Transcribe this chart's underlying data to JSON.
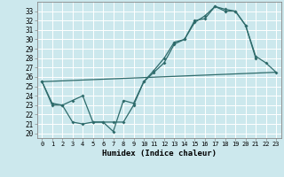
{
  "xlabel": "Humidex (Indice chaleur)",
  "bg_color": "#cce8ed",
  "grid_color": "#ffffff",
  "line_color": "#2e6b6b",
  "xlim": [
    -0.5,
    23.5
  ],
  "ylim": [
    19.5,
    34.0
  ],
  "xticks": [
    0,
    1,
    2,
    3,
    4,
    5,
    6,
    7,
    8,
    9,
    10,
    11,
    12,
    13,
    14,
    15,
    16,
    17,
    18,
    19,
    20,
    21,
    22,
    23
  ],
  "yticks": [
    20,
    21,
    22,
    23,
    24,
    25,
    26,
    27,
    28,
    29,
    30,
    31,
    32,
    33
  ],
  "line1_x": [
    0,
    1,
    2,
    3,
    4,
    5,
    6,
    7,
    8,
    9,
    10,
    11,
    12,
    13,
    14,
    15,
    16,
    17,
    18,
    19,
    20,
    21
  ],
  "line1_y": [
    25.5,
    23.0,
    23.0,
    23.5,
    24.0,
    21.2,
    21.2,
    20.2,
    23.5,
    23.2,
    25.5,
    26.5,
    27.5,
    29.5,
    30.0,
    32.0,
    32.2,
    33.5,
    33.0,
    33.0,
    31.5,
    28.0
  ],
  "line2_x": [
    0,
    1,
    2,
    3,
    4,
    5,
    6,
    7,
    8,
    9,
    10,
    11,
    12,
    13,
    14,
    15,
    16,
    17,
    18,
    19,
    20,
    21,
    22,
    23
  ],
  "line2_y": [
    25.5,
    23.2,
    23.0,
    21.2,
    21.0,
    21.2,
    21.2,
    21.2,
    21.2,
    23.0,
    25.5,
    26.7,
    28.0,
    29.7,
    30.0,
    31.8,
    32.5,
    33.5,
    33.2,
    33.0,
    31.5,
    28.2,
    27.5,
    26.5
  ],
  "line3_x": [
    0,
    23
  ],
  "line3_y": [
    25.5,
    26.5
  ]
}
